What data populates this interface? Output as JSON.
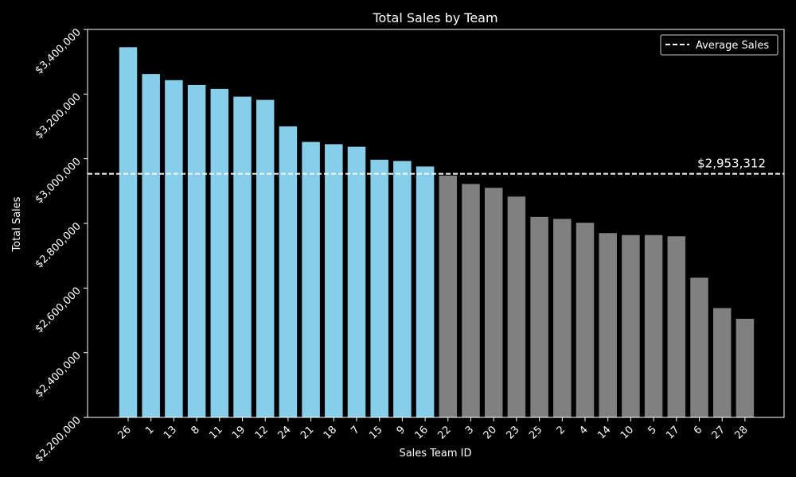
{
  "chart_data": {
    "type": "bar",
    "title": "Total Sales by Team",
    "xlabel": "Sales Team ID",
    "ylabel": "Total Sales",
    "categories": [
      "26",
      "1",
      "13",
      "8",
      "11",
      "19",
      "12",
      "24",
      "21",
      "18",
      "7",
      "15",
      "9",
      "16",
      "22",
      "3",
      "20",
      "23",
      "25",
      "2",
      "4",
      "14",
      "10",
      "5",
      "17",
      "6",
      "27",
      "28"
    ],
    "values": [
      3345000,
      3262000,
      3243000,
      3228000,
      3216000,
      3192000,
      3182000,
      3100000,
      3052000,
      3045000,
      3037000,
      2997000,
      2993000,
      2976000,
      2948000,
      2922000,
      2910000,
      2883000,
      2820000,
      2814000,
      2802000,
      2770000,
      2764000,
      2764000,
      2760000,
      2632000,
      2538000,
      2505000
    ],
    "ylim": [
      2200000,
      3400000
    ],
    "yticks": [
      2200000,
      2400000,
      2600000,
      2800000,
      3000000,
      3200000,
      3400000
    ],
    "ytick_labels": [
      "$2,200,000",
      "$2,400,000",
      "$2,600,000",
      "$2,800,000",
      "$3,000,000",
      "$3,200,000",
      "$3,400,000"
    ],
    "average": 2953312,
    "average_label": "$2,953,312",
    "legend": {
      "entries": [
        "Average Sales"
      ],
      "placement": "top-right"
    },
    "colors": {
      "above_average": "#87ceeb",
      "below_average": "#808080",
      "average_line": "#ffffff",
      "background": "#000000",
      "axes": "#ffffff"
    },
    "grid": false
  }
}
